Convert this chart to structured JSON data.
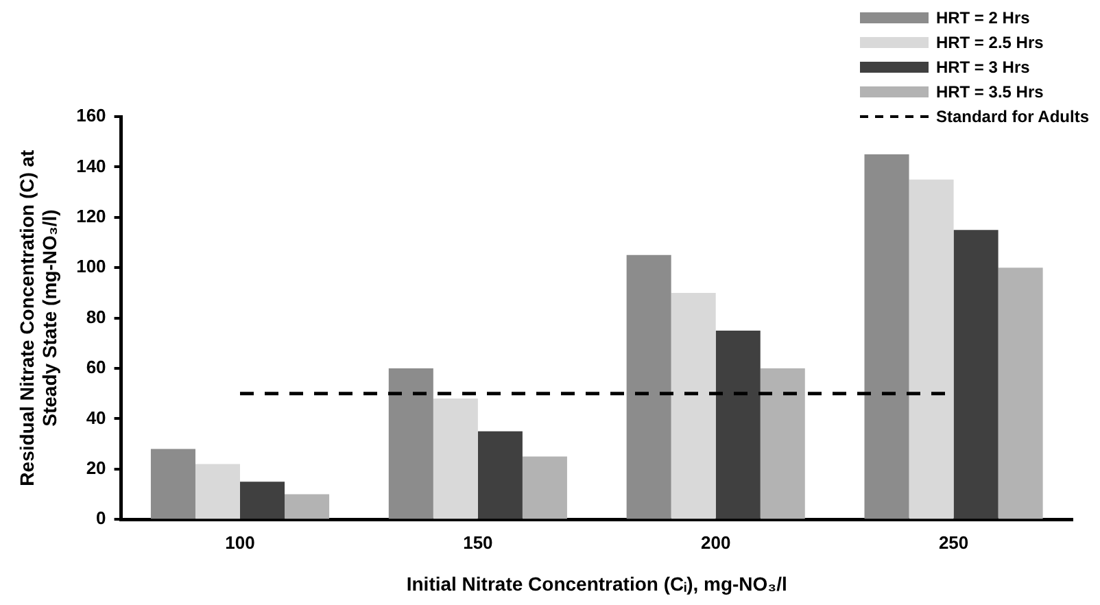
{
  "chart_data": {
    "type": "bar",
    "xlabel": "Initial Nitrate Concentration (Cᵢ), mg-NO₃/l",
    "ylabel": "Residual Nitrate Concentration (C) at Steady State (mg-NO₃/l)",
    "categories": [
      "100",
      "150",
      "200",
      "250"
    ],
    "series": [
      {
        "name": "HRT = 2 Hrs",
        "color": "#8c8c8c",
        "values": [
          28,
          60,
          105,
          145
        ]
      },
      {
        "name": "HRT = 2.5 Hrs",
        "color": "#d9d9d9",
        "values": [
          22,
          48,
          90,
          135
        ]
      },
      {
        "name": "HRT = 3 Hrs",
        "color": "#404040",
        "values": [
          15,
          35,
          75,
          115
        ]
      },
      {
        "name": "HRT = 3.5 Hrs",
        "color": "#b3b3b3",
        "values": [
          10,
          25,
          60,
          100
        ]
      }
    ],
    "ref_lines": [
      {
        "axis": "y",
        "value": 50,
        "label": "Standard for Adults",
        "color": "#000000",
        "line_style": "dashed"
      }
    ],
    "ylim": [
      0,
      160
    ],
    "yticks": [
      0,
      20,
      40,
      60,
      80,
      100,
      120,
      140,
      160
    ],
    "grid": false,
    "legend": "top right"
  }
}
